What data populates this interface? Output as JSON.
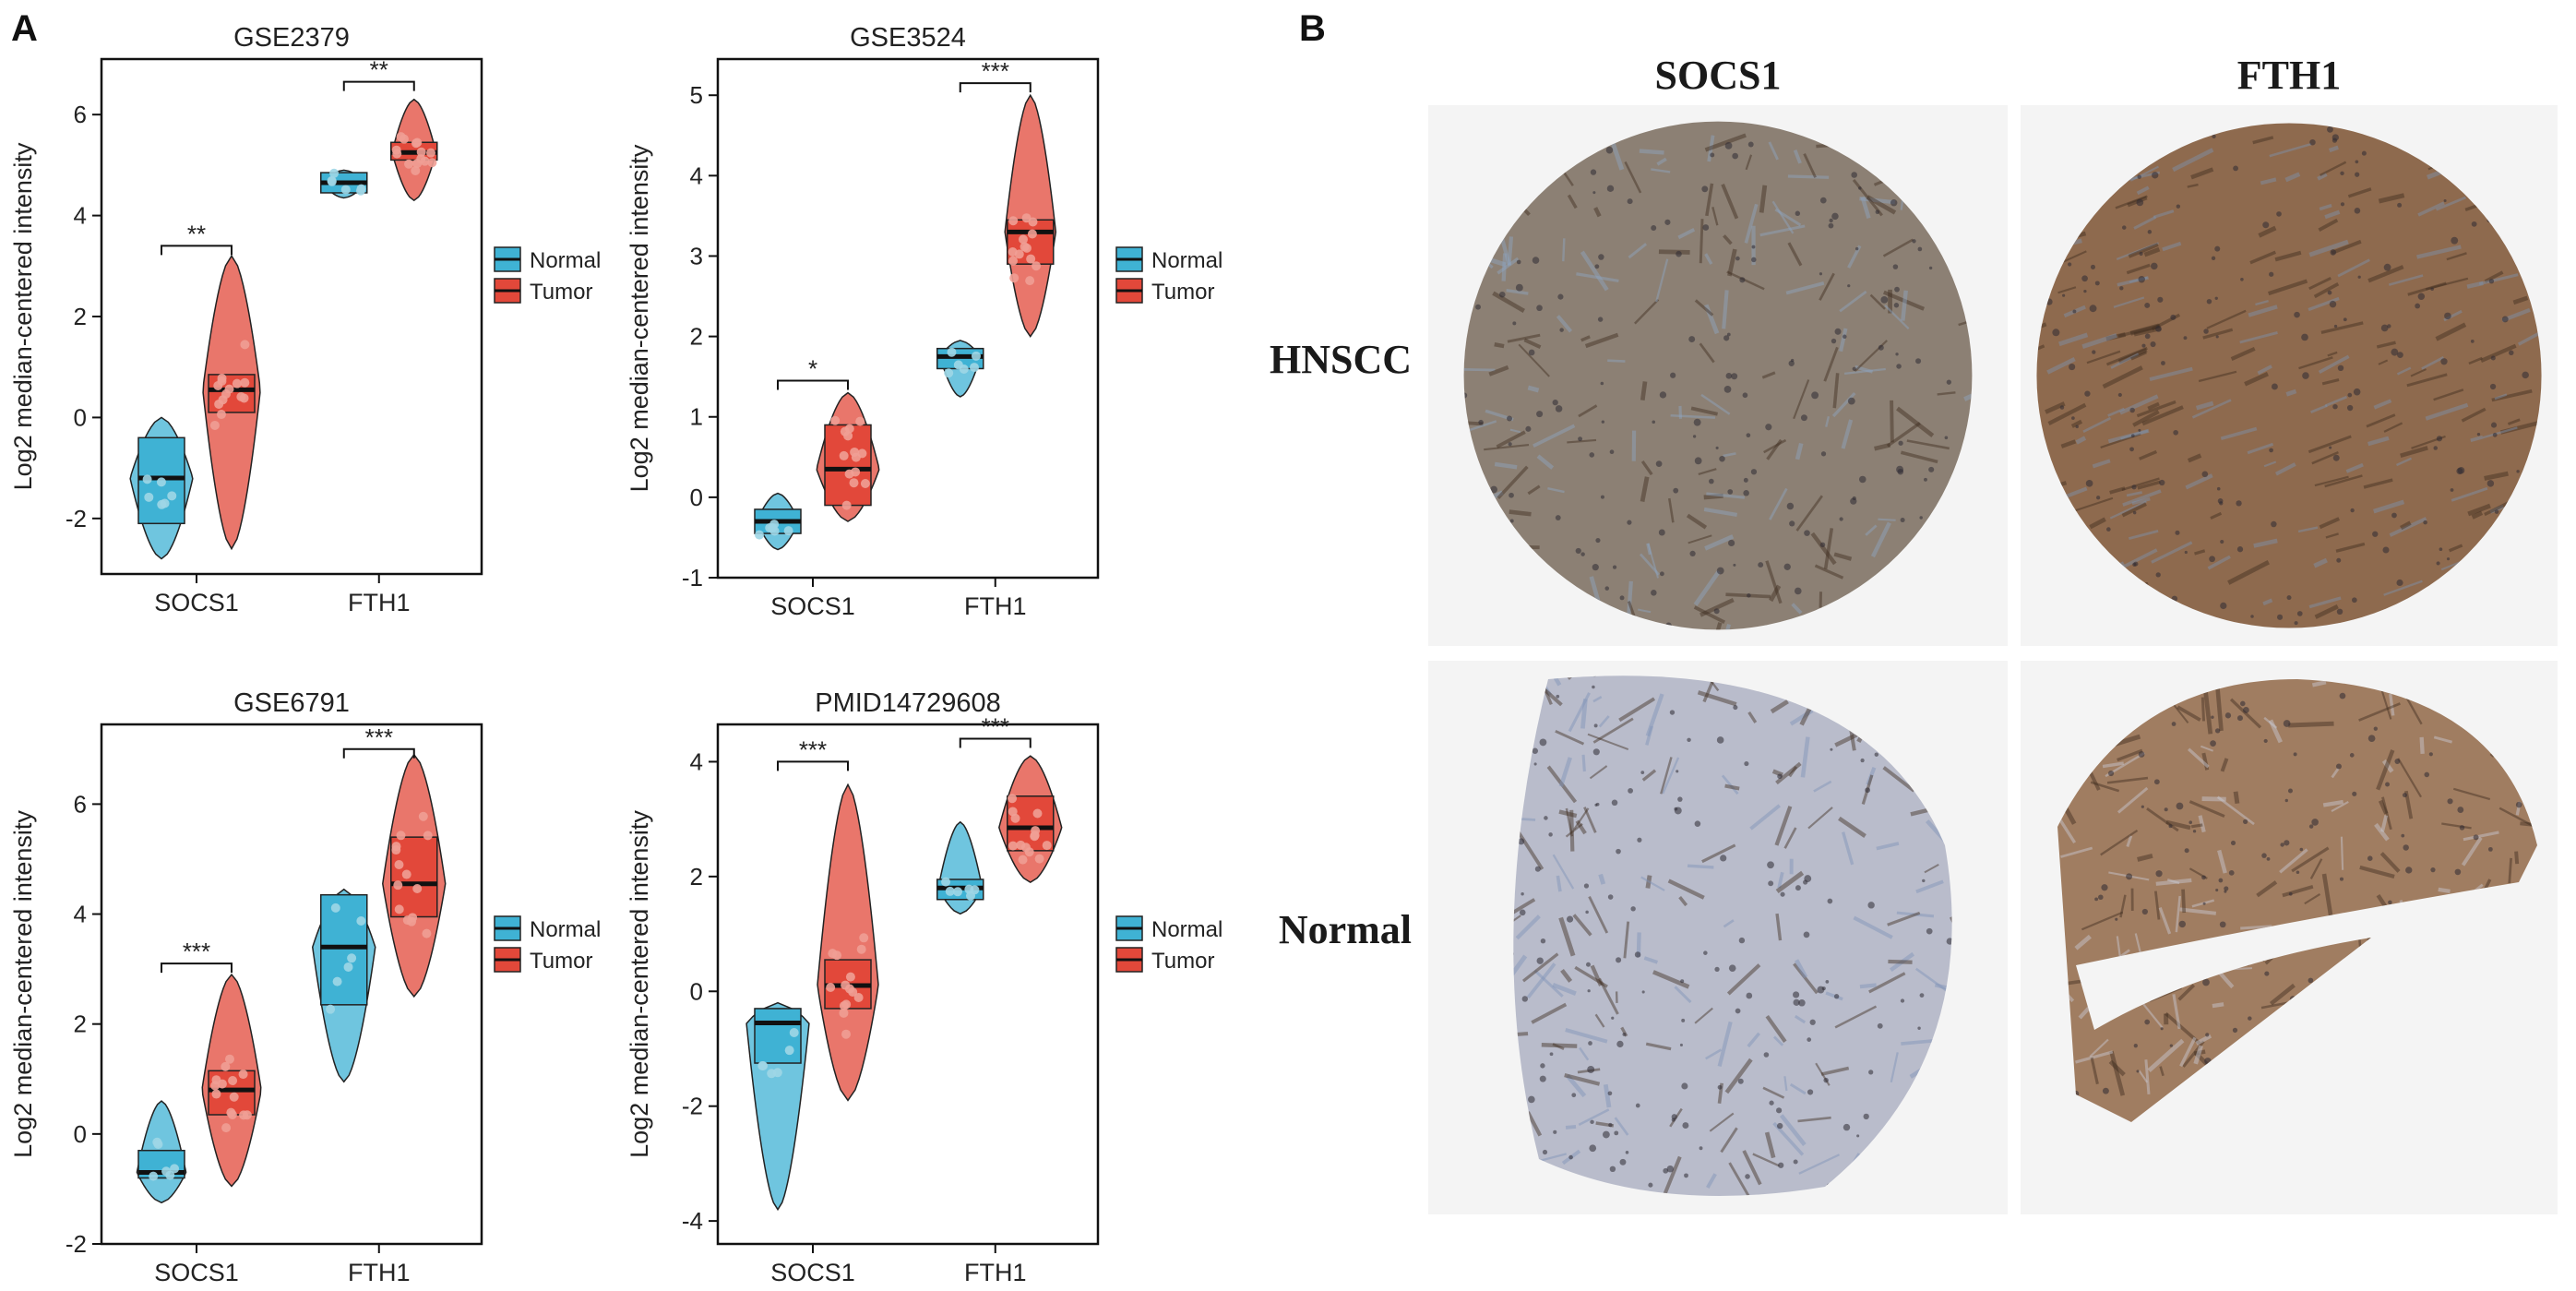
{
  "figure": {
    "panel_a_label": "A",
    "panel_b_label": "B"
  },
  "colors": {
    "normal": "#3fb2d4",
    "tumor": "#e2483a",
    "normal_dot": "#9fd6e6",
    "tumor_dot": "#ef9f95",
    "ihc_background": "#f4f4f4"
  },
  "chart_data": [
    {
      "type": "box-violin",
      "title": "GSE2379",
      "ylabel": "Log2 median-centered intensity",
      "xlabel": "",
      "categories": [
        "SOCS1",
        "FTH1"
      ],
      "ylim": [
        -3.1,
        7.1
      ],
      "yticks": [
        -2,
        0,
        2,
        4,
        6
      ],
      "legend": {
        "position": "right",
        "entries": [
          "Normal",
          "Tumor"
        ]
      },
      "series": [
        {
          "name": "Normal",
          "boxes": [
            {
              "category": "SOCS1",
              "min": -2.8,
              "q1": -2.1,
              "median": -1.2,
              "q3": -0.4,
              "max": 0.0
            },
            {
              "category": "FTH1",
              "min": 4.35,
              "q1": 4.45,
              "median": 4.65,
              "q3": 4.85,
              "max": 4.9
            }
          ]
        },
        {
          "name": "Tumor",
          "boxes": [
            {
              "category": "SOCS1",
              "min": -2.6,
              "q1": 0.1,
              "median": 0.55,
              "q3": 0.85,
              "max": 3.2
            },
            {
              "category": "FTH1",
              "min": 4.3,
              "q1": 5.1,
              "median": 5.25,
              "q3": 5.45,
              "max": 6.3
            }
          ]
        }
      ],
      "significance": [
        {
          "category": "SOCS1",
          "label": "**",
          "y": 3.4
        },
        {
          "category": "FTH1",
          "label": "**",
          "y": 6.65
        }
      ]
    },
    {
      "type": "box-violin",
      "title": "GSE3524",
      "ylabel": "Log2 median-centered intensity",
      "xlabel": "",
      "categories": [
        "SOCS1",
        "FTH1"
      ],
      "ylim": [
        -1.0,
        5.45
      ],
      "yticks": [
        -1,
        0,
        1,
        2,
        3,
        4,
        5
      ],
      "legend": {
        "position": "right",
        "entries": [
          "Normal",
          "Tumor"
        ]
      },
      "series": [
        {
          "name": "Normal",
          "boxes": [
            {
              "category": "SOCS1",
              "min": -0.65,
              "q1": -0.45,
              "median": -0.3,
              "q3": -0.15,
              "max": 0.05
            },
            {
              "category": "FTH1",
              "min": 1.25,
              "q1": 1.6,
              "median": 1.75,
              "q3": 1.85,
              "max": 1.95
            }
          ]
        },
        {
          "name": "Tumor",
          "boxes": [
            {
              "category": "SOCS1",
              "min": -0.3,
              "q1": -0.1,
              "median": 0.35,
              "q3": 0.9,
              "max": 1.3
            },
            {
              "category": "FTH1",
              "min": 2.0,
              "q1": 2.9,
              "median": 3.3,
              "q3": 3.45,
              "max": 5.0
            }
          ]
        }
      ],
      "significance": [
        {
          "category": "SOCS1",
          "label": "*",
          "y": 1.45
        },
        {
          "category": "FTH1",
          "label": "***",
          "y": 5.15
        }
      ]
    },
    {
      "type": "box-violin",
      "title": "GSE6791",
      "ylabel": "Log2 median-centered intensity",
      "xlabel": "",
      "categories": [
        "SOCS1",
        "FTH1"
      ],
      "ylim": [
        -2.0,
        7.45
      ],
      "yticks": [
        -2,
        0,
        2,
        4,
        6
      ],
      "legend": {
        "position": "right",
        "entries": [
          "Normal",
          "Tumor"
        ]
      },
      "series": [
        {
          "name": "Normal",
          "boxes": [
            {
              "category": "SOCS1",
              "min": -1.25,
              "q1": -0.8,
              "median": -0.7,
              "q3": -0.3,
              "max": 0.6
            },
            {
              "category": "FTH1",
              "min": 0.95,
              "q1": 2.35,
              "median": 3.4,
              "q3": 4.35,
              "max": 4.45
            }
          ]
        },
        {
          "name": "Tumor",
          "boxes": [
            {
              "category": "SOCS1",
              "min": -0.95,
              "q1": 0.35,
              "median": 0.8,
              "q3": 1.15,
              "max": 2.9
            },
            {
              "category": "FTH1",
              "min": 2.5,
              "q1": 3.95,
              "median": 4.55,
              "q3": 5.4,
              "max": 6.9
            }
          ]
        }
      ],
      "significance": [
        {
          "category": "SOCS1",
          "label": "***",
          "y": 3.1
        },
        {
          "category": "FTH1",
          "label": "***",
          "y": 7.0
        }
      ]
    },
    {
      "type": "box-violin",
      "title": "PMID14729608",
      "ylabel": "Log2 median-centered intensity",
      "xlabel": "",
      "categories": [
        "SOCS1",
        "FTH1"
      ],
      "ylim": [
        -4.4,
        4.65
      ],
      "yticks": [
        -4,
        -2,
        0,
        2,
        4
      ],
      "legend": {
        "position": "right",
        "entries": [
          "Normal",
          "Tumor"
        ]
      },
      "series": [
        {
          "name": "Normal",
          "boxes": [
            {
              "category": "SOCS1",
              "min": -3.8,
              "q1": -1.25,
              "median": -0.55,
              "q3": -0.3,
              "max": -0.2
            },
            {
              "category": "FTH1",
              "min": 1.35,
              "q1": 1.6,
              "median": 1.8,
              "q3": 1.95,
              "max": 2.95
            }
          ]
        },
        {
          "name": "Tumor",
          "boxes": [
            {
              "category": "SOCS1",
              "min": -1.9,
              "q1": -0.3,
              "median": 0.1,
              "q3": 0.55,
              "max": 3.6
            },
            {
              "category": "FTH1",
              "min": 1.9,
              "q1": 2.45,
              "median": 2.85,
              "q3": 3.4,
              "max": 4.1
            }
          ]
        }
      ],
      "significance": [
        {
          "category": "SOCS1",
          "label": "***",
          "y": 4.0
        },
        {
          "category": "FTH1",
          "label": "***",
          "y": 4.4
        }
      ]
    }
  ],
  "ihc": {
    "column_labels": [
      "SOCS1",
      "FTH1"
    ],
    "row_labels": [
      "HNSCC",
      "Normal"
    ],
    "images": [
      {
        "row": "HNSCC",
        "col": "SOCS1",
        "stain": "#8c8074",
        "counter": "#8fa6c4"
      },
      {
        "row": "HNSCC",
        "col": "FTH1",
        "stain": "#8e6a4e",
        "counter": "#7d92b0"
      },
      {
        "row": "Normal",
        "col": "SOCS1",
        "stain": "#b9bccb",
        "counter": "#7e93b8"
      },
      {
        "row": "Normal",
        "col": "FTH1",
        "stain": "#a07d61",
        "counter": "#c9ccd8"
      }
    ]
  }
}
